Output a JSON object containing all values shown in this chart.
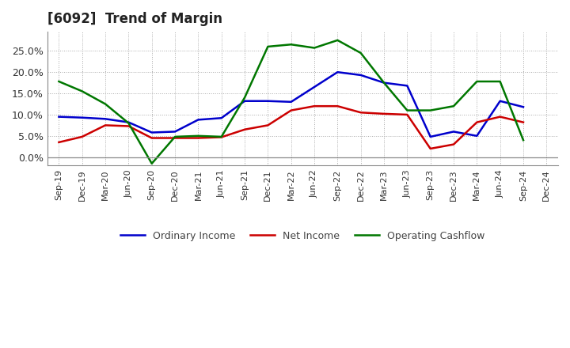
{
  "title": "[6092]  Trend of Margin",
  "x_labels": [
    "Sep-19",
    "Dec-19",
    "Mar-20",
    "Jun-20",
    "Sep-20",
    "Dec-20",
    "Mar-21",
    "Jun-21",
    "Sep-21",
    "Dec-21",
    "Mar-22",
    "Jun-22",
    "Sep-22",
    "Dec-22",
    "Mar-23",
    "Jun-23",
    "Sep-23",
    "Dec-23",
    "Mar-24",
    "Jun-24",
    "Sep-24",
    "Dec-24"
  ],
  "ordinary_income": [
    0.095,
    0.093,
    0.09,
    0.082,
    0.058,
    0.06,
    0.088,
    0.092,
    0.132,
    0.132,
    0.13,
    0.165,
    0.2,
    0.193,
    0.175,
    0.168,
    0.048,
    0.06,
    0.05,
    0.132,
    0.118,
    null
  ],
  "net_income": [
    0.035,
    0.048,
    0.075,
    0.073,
    0.045,
    0.045,
    0.045,
    0.047,
    0.065,
    0.075,
    0.11,
    0.12,
    0.12,
    0.105,
    0.102,
    0.1,
    0.02,
    0.03,
    0.082,
    0.095,
    0.082,
    null
  ],
  "operating_cashflow": [
    0.178,
    0.155,
    0.125,
    0.08,
    -0.015,
    0.048,
    0.05,
    0.048,
    0.14,
    0.26,
    0.265,
    0.257,
    0.275,
    0.245,
    0.175,
    0.11,
    0.11,
    0.12,
    0.178,
    0.178,
    0.04,
    null
  ],
  "ordinary_income_color": "#0000cc",
  "net_income_color": "#cc0000",
  "operating_cashflow_color": "#007700",
  "background_color": "#ffffff",
  "ylim": [
    -0.02,
    0.295
  ],
  "yticks": [
    0.0,
    0.05,
    0.1,
    0.15,
    0.2,
    0.25
  ],
  "ytick_labels": [
    "0.0%",
    "5.0%",
    "10.0%",
    "15.0%",
    "20.0%",
    "25.0%"
  ],
  "legend_labels": [
    "Ordinary Income",
    "Net Income",
    "Operating Cashflow"
  ],
  "line_width": 1.8,
  "title_fontsize": 12,
  "tick_fontsize": 8,
  "legend_fontsize": 9
}
